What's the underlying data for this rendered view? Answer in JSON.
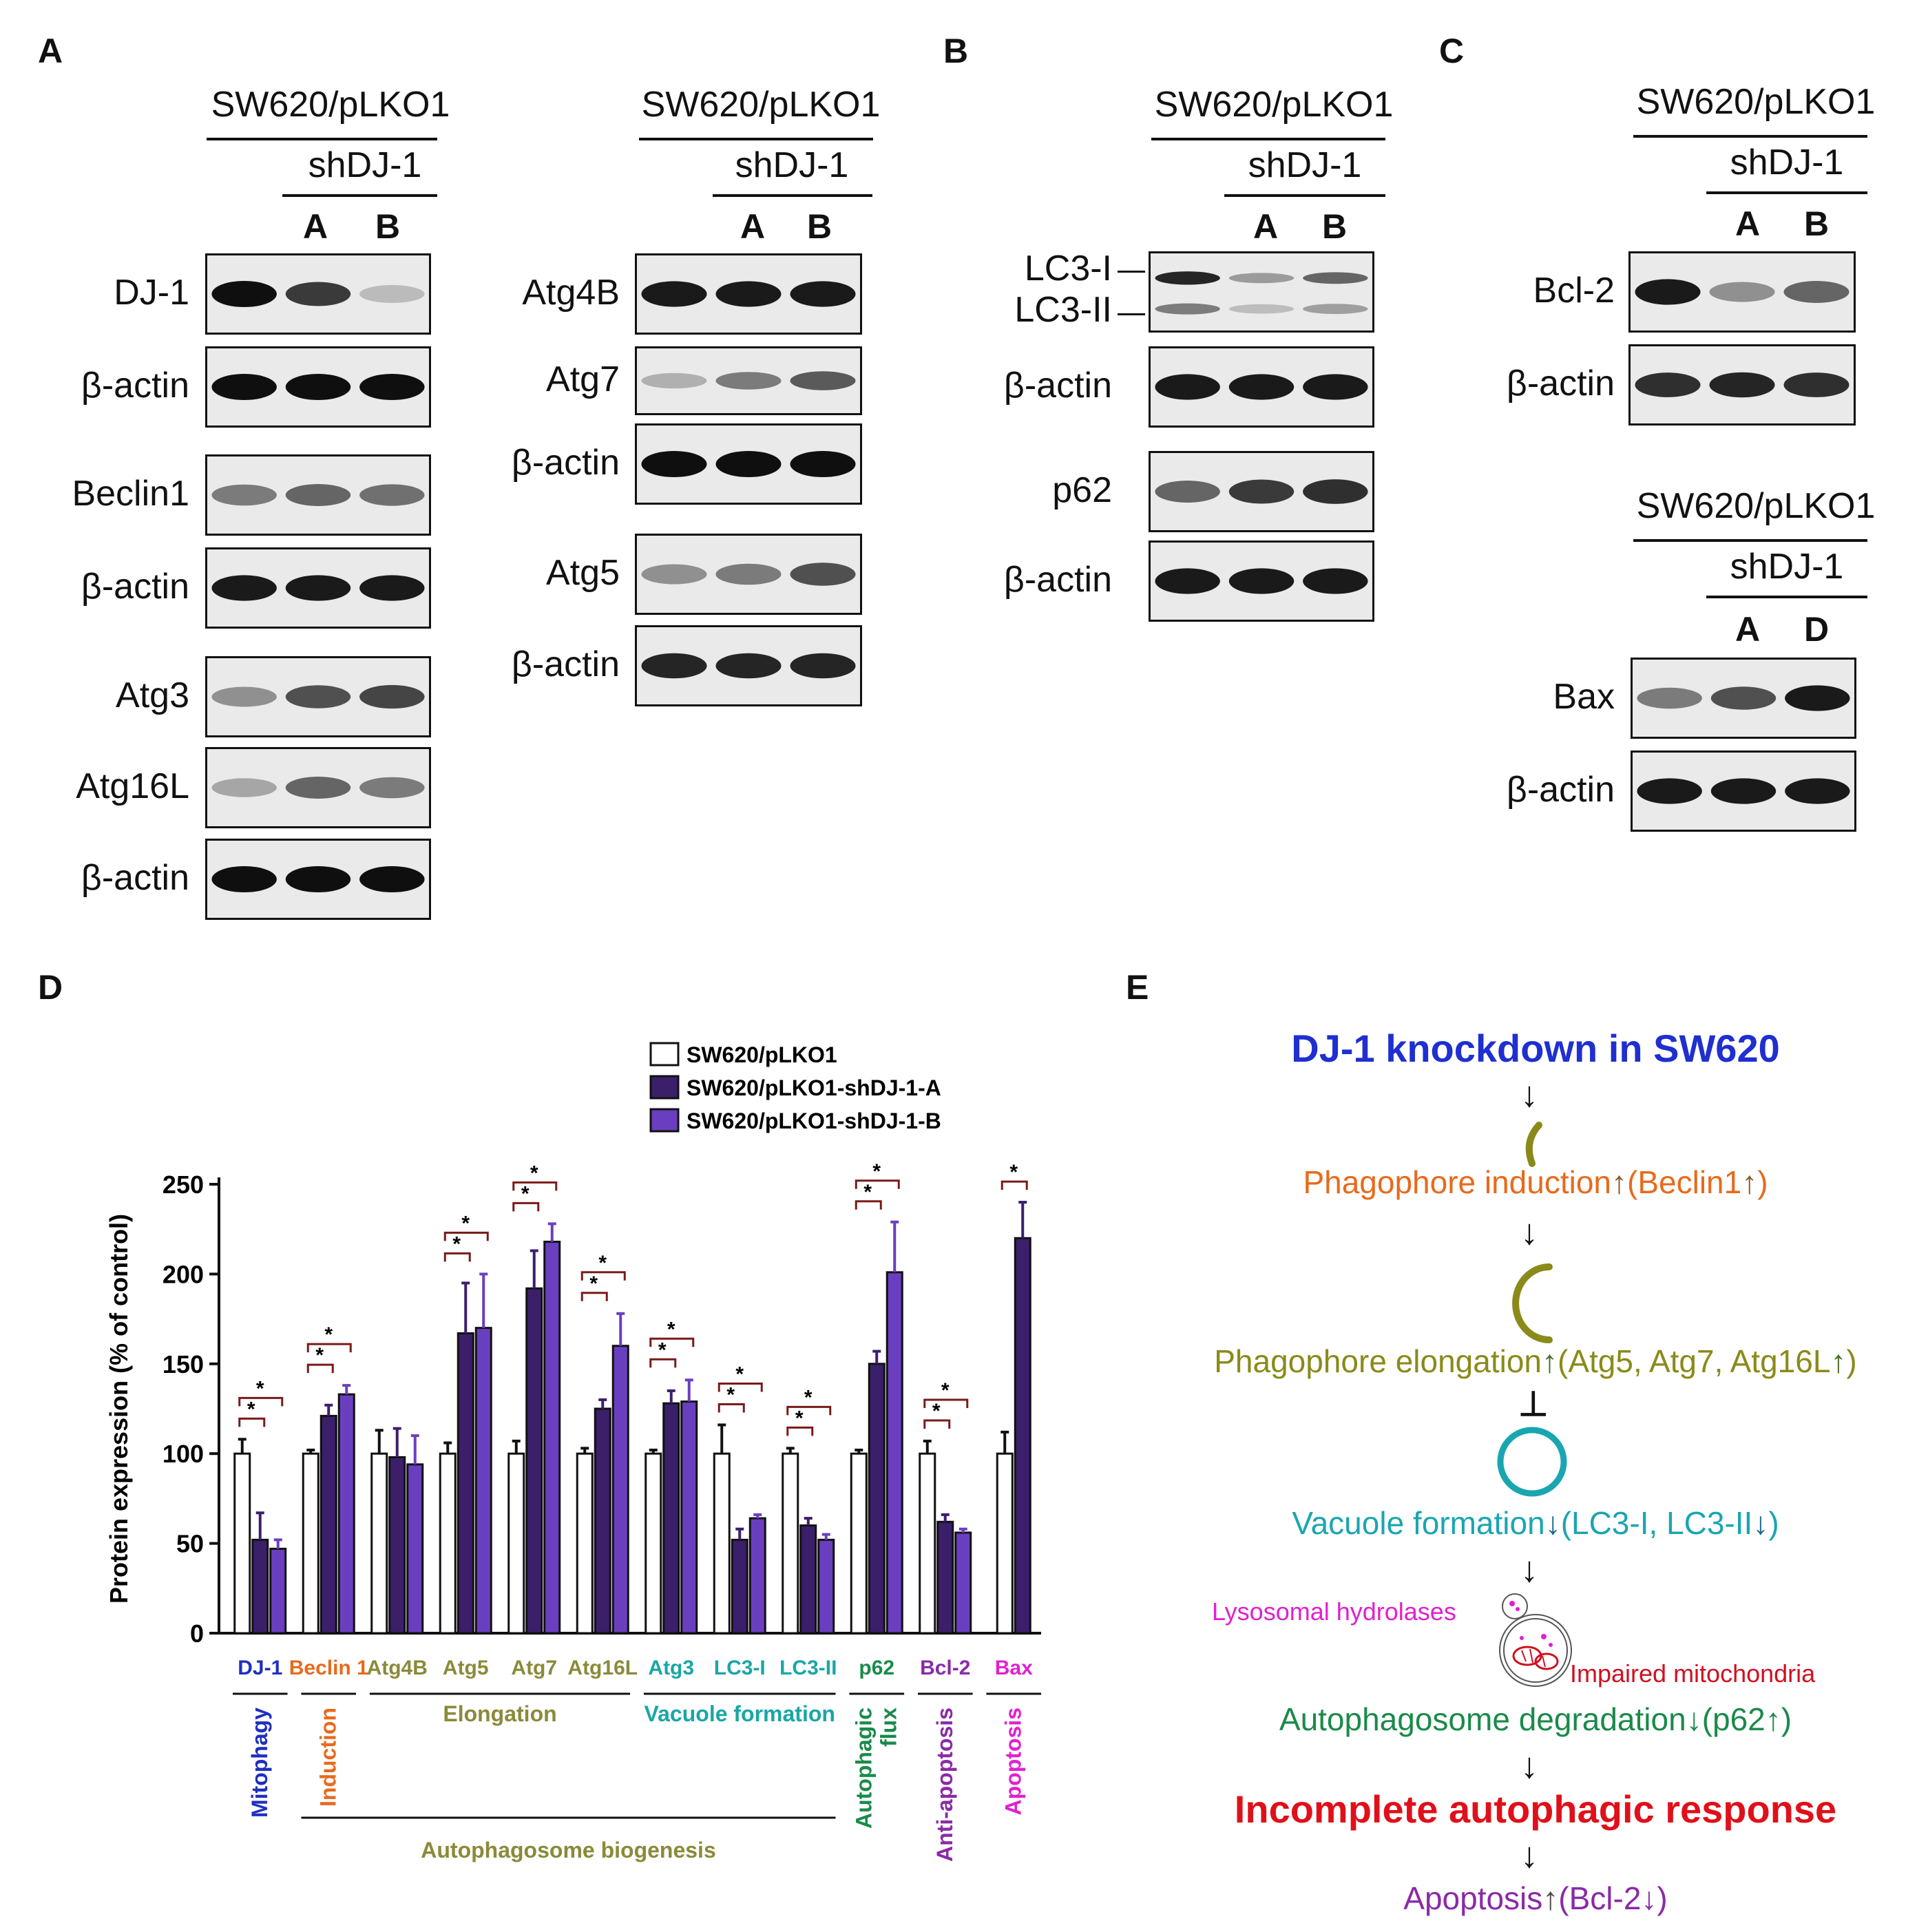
{
  "panels": {
    "A": "A",
    "B": "B",
    "C": "C",
    "D": "D",
    "E": "E"
  },
  "header": {
    "control": "SW620/pLKO1",
    "sh": "shDJ-1",
    "laneA": "A",
    "laneB": "B",
    "laneD": "D"
  },
  "blots": {
    "a1": [
      {
        "label": "DJ-1",
        "intensity": [
          1.0,
          0.8,
          0.2
        ]
      },
      {
        "label": "β-actin",
        "intensity": [
          1.0,
          1.0,
          1.0
        ]
      },
      {
        "label": "Beclin1",
        "intensity": [
          0.5,
          0.6,
          0.55
        ]
      },
      {
        "label": "β-actin",
        "intensity": [
          0.95,
          0.95,
          0.95
        ]
      },
      {
        "label": "Atg3",
        "intensity": [
          0.4,
          0.7,
          0.75
        ]
      },
      {
        "label": "Atg16L",
        "intensity": [
          0.3,
          0.6,
          0.5
        ]
      },
      {
        "label": "β-actin",
        "intensity": [
          1.0,
          1.0,
          1.0
        ]
      }
    ],
    "a2": [
      {
        "label": "Atg4B",
        "intensity": [
          0.95,
          0.95,
          0.95
        ]
      },
      {
        "label": "Atg7",
        "intensity": [
          0.25,
          0.5,
          0.65
        ]
      },
      {
        "label": "β-actin",
        "intensity": [
          1.0,
          1.0,
          1.0
        ]
      },
      {
        "label": "Atg5",
        "intensity": [
          0.4,
          0.5,
          0.7
        ]
      },
      {
        "label": "β-actin",
        "intensity": [
          0.9,
          0.9,
          0.9
        ]
      }
    ],
    "b": [
      {
        "label": "LC3-I",
        "label2": "LC3-II",
        "intensity": [
          0.9,
          0.35,
          0.6
        ]
      },
      {
        "label": "β-actin",
        "intensity": [
          0.95,
          0.95,
          0.95
        ]
      },
      {
        "label": "p62",
        "intensity": [
          0.6,
          0.8,
          0.85
        ]
      },
      {
        "label": "β-actin",
        "intensity": [
          0.95,
          0.95,
          0.95
        ]
      }
    ],
    "c1": [
      {
        "label": "Bcl-2",
        "intensity": [
          0.95,
          0.4,
          0.6
        ]
      },
      {
        "label": "β-actin",
        "intensity": [
          0.85,
          0.9,
          0.85
        ]
      }
    ],
    "c2": [
      {
        "label": "Bax",
        "intensity": [
          0.5,
          0.7,
          0.95
        ]
      },
      {
        "label": "β-actin",
        "intensity": [
          0.95,
          0.95,
          0.95
        ]
      }
    ]
  },
  "chart_data": {
    "type": "bar",
    "ylabel": "Protein expression (% of control)",
    "ylim": [
      0,
      250
    ],
    "yticks": [
      "0",
      "50",
      "100",
      "150",
      "200",
      "250"
    ],
    "categories": [
      "DJ-1",
      "Beclin 1",
      "Atg4B",
      "Atg5",
      "Atg7",
      "Atg16L",
      "Atg3",
      "LC3-I",
      "LC3-II",
      "p62",
      "Bcl-2",
      "Bax"
    ],
    "category_colors": [
      "#1f2fbf",
      "#e86a1c",
      "#8a8a3a",
      "#8a8a3a",
      "#8a8a3a",
      "#8a8a3a",
      "#1aa6a6",
      "#1aa6a6",
      "#1aa6a6",
      "#1a8a4a",
      "#8a2aa8",
      "#e020d0"
    ],
    "series": [
      {
        "name": "SW620/pLKO1",
        "color": "#ffffff",
        "values": [
          100,
          100,
          100,
          100,
          100,
          100,
          100,
          100,
          100,
          100,
          100,
          100
        ],
        "errors": [
          8,
          2,
          13,
          6,
          7,
          3,
          2,
          16,
          3,
          2,
          7,
          12
        ]
      },
      {
        "name": "SW620/pLKO1-shDJ-1-A",
        "color": "#3b1f6b",
        "values": [
          52,
          121,
          98,
          167,
          192,
          125,
          128,
          52,
          60,
          150,
          62,
          220
        ],
        "errors": [
          15,
          6,
          16,
          28,
          21,
          5,
          7,
          6,
          4,
          7,
          4,
          20
        ]
      },
      {
        "name": "SW620/pLKO1-shDJ-1-B",
        "color": "#6a3fbf",
        "values": [
          47,
          133,
          94,
          170,
          218,
          160,
          129,
          64,
          52,
          201,
          56,
          null
        ],
        "errors": [
          5,
          5,
          16,
          30,
          10,
          18,
          12,
          2,
          3,
          28,
          2,
          null
        ]
      }
    ],
    "significance": "*",
    "groups": [
      {
        "label": "Mitophagy",
        "color": "#1f2fbf"
      },
      {
        "label": "Induction",
        "color": "#e86a1c"
      },
      {
        "label": "Elongation",
        "color": "#8a8a3a"
      },
      {
        "label": "Vacuole formation",
        "color": "#1aa6a6"
      },
      {
        "label": "Autophagic flux",
        "color": "#1a8a4a"
      },
      {
        "label": "Anti-apoptosis",
        "color": "#8a2aa8"
      },
      {
        "label": "Apoptosis",
        "color": "#e020d0"
      }
    ],
    "supergroup": {
      "label": "Autophagosome biogenesis",
      "color": "#8a8a3a"
    }
  },
  "schematic": {
    "title": "DJ-1 knockdown in SW620",
    "induction": "Phagophore induction",
    "induction_paren": "(Beclin1",
    "elongation": "Phagophore elongation",
    "elongation_paren": "(Atg5, Atg7, Atg16L",
    "vacuole": "Vacuole formation",
    "vacuole_paren": "(LC3-I, LC3-II",
    "lysosomal": "Lysosomal hydrolases",
    "mito": "Impaired mitochondria",
    "degradation": "Autophagosome degradation",
    "degradation_paren": "(p62",
    "incomplete": "Incomplete autophagic response",
    "apoptosis": "Apoptosis",
    "apoptosis_paren": "(Bcl-2",
    "close": ")",
    "up": "↑",
    "down": "↓",
    "arrow": "↓",
    "inhibit": "⊥"
  }
}
